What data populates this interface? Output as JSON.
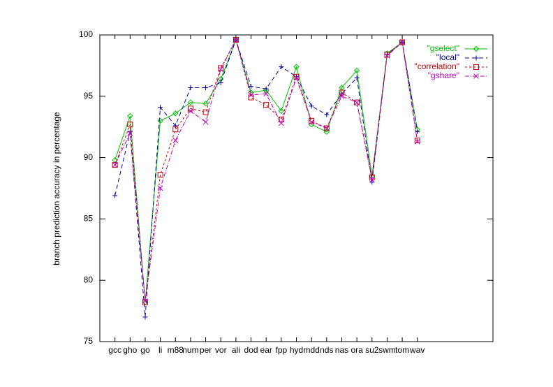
{
  "chart_data": {
    "type": "line",
    "ylabel": "branch prediction accuracy in percentage",
    "categories": [
      "gcc",
      "gho",
      "go",
      "li",
      "m88",
      "num",
      "per",
      "vor",
      "ali",
      "dod",
      "ear",
      "fpp",
      "hyd",
      "mdd",
      "nds",
      "nas",
      "ora",
      "su2",
      "swm",
      "tom",
      "wav"
    ],
    "series": [
      {
        "name": "\"gselect\"",
        "color": "#00c000",
        "marker": "diamond",
        "dash": "",
        "values": [
          89.8,
          93.4,
          78.2,
          93.0,
          93.6,
          94.5,
          94.4,
          96.4,
          99.6,
          95.3,
          95.5,
          93.8,
          97.4,
          92.7,
          92.1,
          95.7,
          97.1,
          88.5,
          98.5,
          99.4,
          92.3
        ]
      },
      {
        "name": "\"local\"",
        "color": "#0000a0",
        "marker": "plus",
        "dash": "6,4",
        "values": [
          86.9,
          92.1,
          77.0,
          94.1,
          92.6,
          95.7,
          95.7,
          96.1,
          99.6,
          95.8,
          95.6,
          97.4,
          96.6,
          94.2,
          93.5,
          95.2,
          96.5,
          88.0,
          98.4,
          99.4,
          92.1
        ]
      },
      {
        "name": "\"correlation\"",
        "color": "#c00000",
        "marker": "square",
        "dash": "3,3",
        "values": [
          89.4,
          92.7,
          78.2,
          88.6,
          92.3,
          94.0,
          93.7,
          97.3,
          99.6,
          94.9,
          94.3,
          93.1,
          96.6,
          93.0,
          92.4,
          95.3,
          94.5,
          88.4,
          98.4,
          99.4,
          91.4
        ]
      },
      {
        "name": "\"gshare\"",
        "color": "#c000c0",
        "marker": "cross",
        "dash": "6,2,1,2",
        "values": [
          89.4,
          92.0,
          78.3,
          87.5,
          91.4,
          93.8,
          92.9,
          97.2,
          99.6,
          95.1,
          95.2,
          92.8,
          96.5,
          92.9,
          92.4,
          95.0,
          94.5,
          88.2,
          98.3,
          99.4,
          91.3
        ]
      }
    ],
    "ylim": [
      75,
      100
    ],
    "yticks": [
      75,
      80,
      85,
      90,
      95,
      100
    ],
    "grid": false,
    "legend": "top-right"
  }
}
